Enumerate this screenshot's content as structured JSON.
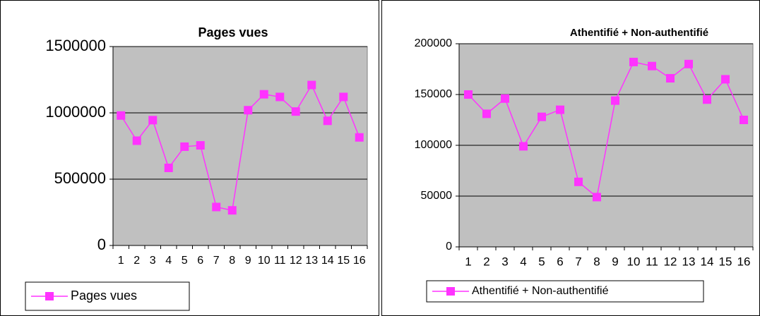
{
  "chart_data": [
    {
      "type": "line",
      "title": "Pages vues",
      "categories": [
        "1",
        "2",
        "3",
        "4",
        "5",
        "6",
        "7",
        "8",
        "9",
        "10",
        "11",
        "12",
        "13",
        "14",
        "15",
        "16"
      ],
      "series": [
        {
          "name": "Pages vues",
          "color": "#ff33ff",
          "values": [
            980000,
            790000,
            945000,
            585000,
            745000,
            755000,
            290000,
            265000,
            1020000,
            1140000,
            1120000,
            1010000,
            1210000,
            940000,
            1120000,
            815000
          ]
        }
      ],
      "ylim": [
        0,
        1500000
      ],
      "yticks": [
        0,
        500000,
        1000000,
        1500000
      ],
      "grid": true,
      "legend": "bottom-left"
    },
    {
      "type": "line",
      "title": "Athentifié + Non-authentifié",
      "categories": [
        "1",
        "2",
        "3",
        "4",
        "5",
        "6",
        "7",
        "8",
        "9",
        "10",
        "11",
        "12",
        "13",
        "14",
        "15",
        "16"
      ],
      "series": [
        {
          "name": "Athentifié + Non-authentifié",
          "color": "#ff33ff",
          "values": [
            150000,
            131000,
            146000,
            99000,
            128000,
            135000,
            64000,
            49000,
            144000,
            182000,
            178000,
            166000,
            180000,
            145000,
            165000,
            125000
          ]
        }
      ],
      "ylim": [
        0,
        200000
      ],
      "yticks": [
        0,
        50000,
        100000,
        150000,
        200000
      ],
      "grid": true,
      "legend": "bottom-left"
    }
  ]
}
